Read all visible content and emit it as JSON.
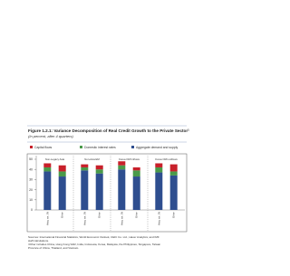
{
  "chart_data": {
    "type": "stacked-bar",
    "title": "Figure 1.2.1: Variance Decomposition of Real Credit Growth to the Private Sector",
    "title_note": "1",
    "subtitle": "(In percent, after 4 quarters)",
    "panels": [
      "Non-Legacy Asia",
      "Non-Asia EM",
      "Korea OMI inflows",
      "Korea OMI outflows"
    ],
    "categories": [
      "Asia, ex. JN",
      "Other",
      "Asia, ex. JN",
      "Other",
      "Asia, ex. JN",
      "Other",
      "Asia, ex. JN",
      "Other"
    ],
    "series": [
      {
        "name": "Aggregate demand and supply",
        "color": "#2e4e8f",
        "values": [
          38,
          33,
          39,
          36,
          40,
          33,
          37,
          34
        ]
      },
      {
        "name": "Domestic interest rates",
        "color": "#4a9a4a",
        "values": [
          4,
          5,
          3,
          4,
          4,
          6,
          5,
          4
        ]
      },
      {
        "name": "Capital flows",
        "color": "#c8202a",
        "values": [
          4,
          6,
          3,
          4,
          4,
          3,
          4,
          7
        ]
      }
    ],
    "legend_order": [
      2,
      1,
      0
    ],
    "ylim": [
      0,
      50
    ],
    "yticks": [
      0,
      10,
      20,
      30,
      40,
      50
    ]
  },
  "notes": [
    "Sources: International Financial Statistics, World Economic Outlook, CEIC Co. Ltd., Haver Analytics; and IMF staff calculations.",
    "¹Other includes China, Hong Kong SAR, India, Indonesia, Korea, Malaysia, the Philippines, Singapore, Taiwan Province of China, Thailand, and Vietnam."
  ]
}
